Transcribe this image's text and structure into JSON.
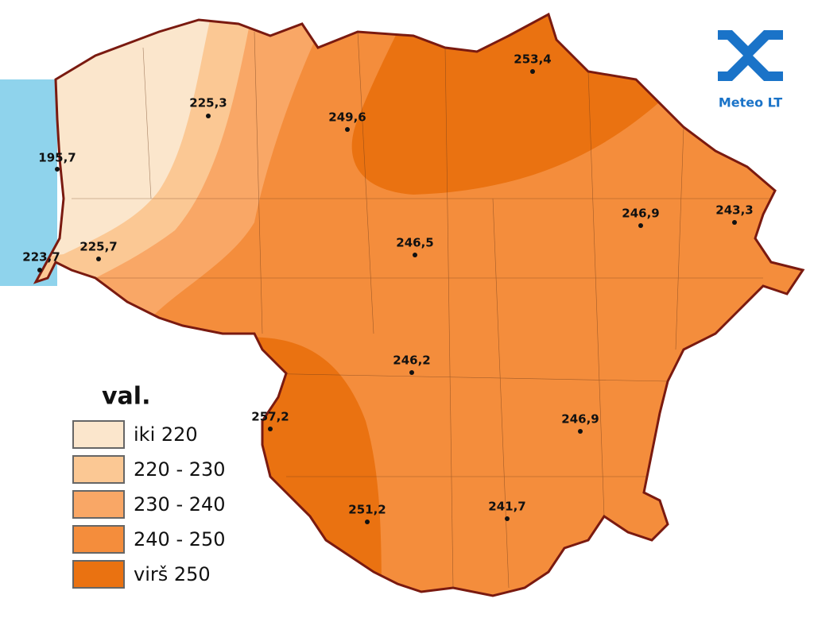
{
  "map": {
    "stations": [
      {
        "label": "195,7"
      },
      {
        "label": "225,3"
      },
      {
        "label": "249,6"
      },
      {
        "label": "253,4"
      },
      {
        "label": "246,9"
      },
      {
        "label": "243,3"
      },
      {
        "label": "246,5"
      },
      {
        "label": "225,7"
      },
      {
        "label": "223,7"
      },
      {
        "label": "246,2"
      },
      {
        "label": "257,2"
      },
      {
        "label": "246,9"
      },
      {
        "label": "251,2"
      },
      {
        "label": "241,7"
      }
    ],
    "legend": {
      "title": "val.",
      "items": [
        {
          "label": "iki 220",
          "color": "#fbe6cc"
        },
        {
          "label": "220 - 230",
          "color": "#fbc894"
        },
        {
          "label": "230 - 240",
          "color": "#f9a766"
        },
        {
          "label": "240 - 250",
          "color": "#f48d3c"
        },
        {
          "label": "virš 250",
          "color": "#ea7211"
        }
      ]
    },
    "logo": "Meteo LT"
  }
}
